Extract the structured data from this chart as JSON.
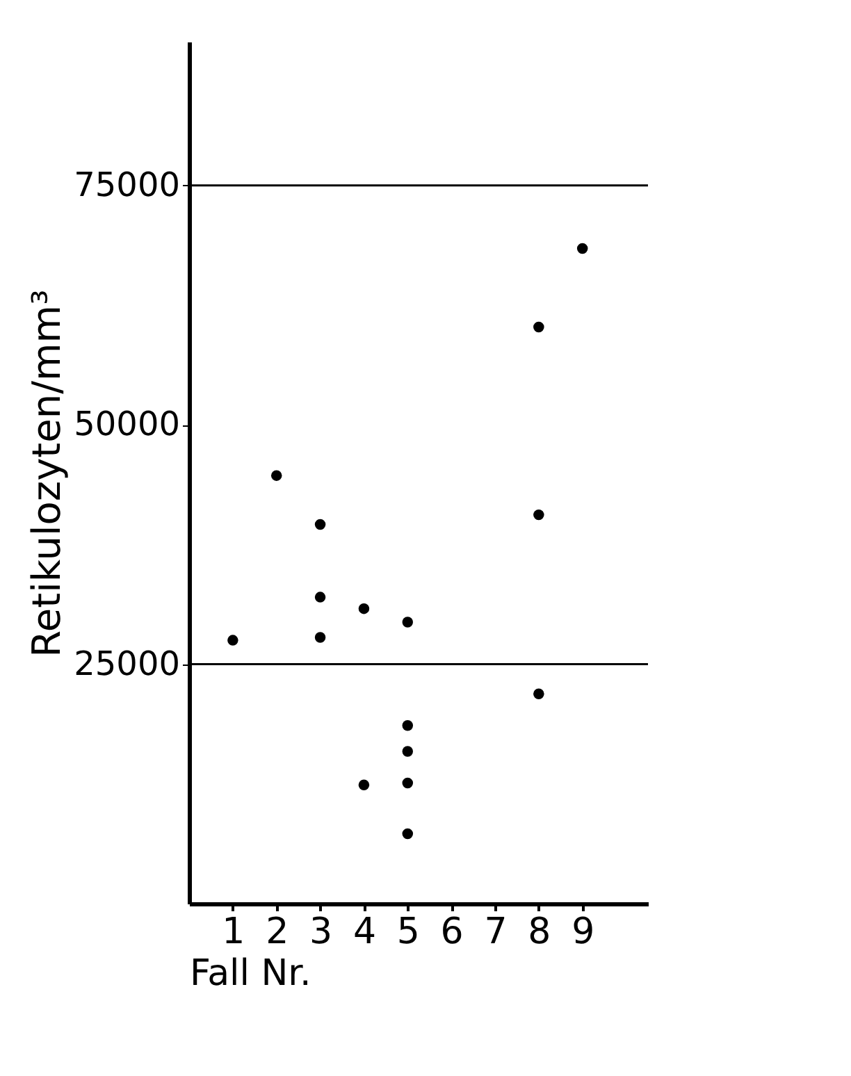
{
  "chart_data": {
    "type": "scatter",
    "xlabel": "Fall Nr.",
    "ylabel": "Retikulozyten/mm³",
    "categories": [
      "1",
      "2",
      "3",
      "4",
      "5",
      "6",
      "7",
      "8",
      "9"
    ],
    "series": [
      {
        "color": "#000000",
        "x": [
          "1",
          "2",
          "3",
          "3",
          "3",
          "4",
          "4",
          "5",
          "5",
          "5",
          "5",
          "5",
          "8",
          "8",
          "8",
          "9"
        ],
        "values": [
          27500,
          44700,
          39600,
          32000,
          27800,
          30800,
          12400,
          29400,
          18600,
          15900,
          12600,
          7300,
          60200,
          40600,
          21900,
          68400
        ]
      }
    ],
    "ylim": [
      0,
      90000
    ],
    "yticks": [
      25000,
      50000,
      75000
    ],
    "ref_lines": [
      {
        "axis": "y",
        "value": 25000,
        "color": "#000000"
      },
      {
        "axis": "y",
        "value": 75000,
        "color": "#000000"
      }
    ],
    "grid": false,
    "marker": "circle"
  }
}
